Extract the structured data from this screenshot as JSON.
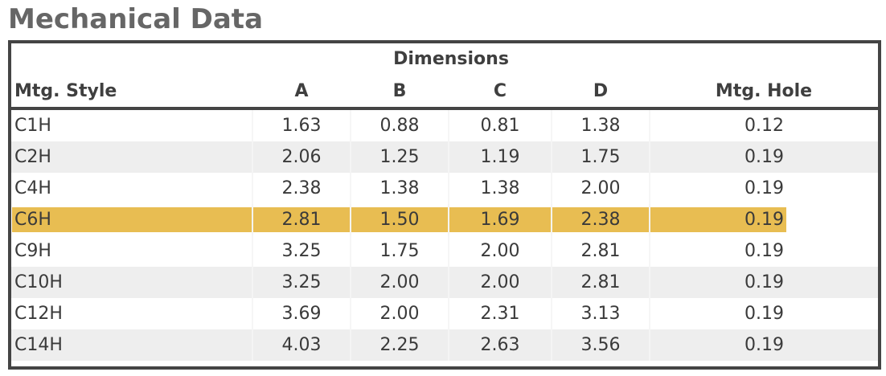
{
  "title": "Mechanical Data",
  "group_header": "Dimensions",
  "columns": [
    "Mtg. Style",
    "A",
    "B",
    "C",
    "D",
    "Mtg. Hole"
  ],
  "rows": [
    {
      "style": "C1H",
      "a": "1.63",
      "b": "0.88",
      "c": "0.81",
      "d": "1.38",
      "hole": "0.12"
    },
    {
      "style": "C2H",
      "a": "2.06",
      "b": "1.25",
      "c": "1.19",
      "d": "1.75",
      "hole": "0.19"
    },
    {
      "style": "C4H",
      "a": "2.38",
      "b": "1.38",
      "c": "1.38",
      "d": "2.00",
      "hole": "0.19"
    },
    {
      "style": "C6H",
      "a": "2.81",
      "b": "1.50",
      "c": "1.69",
      "d": "2.38",
      "hole": "0.19"
    },
    {
      "style": "C9H",
      "a": "3.25",
      "b": "1.75",
      "c": "2.00",
      "d": "2.81",
      "hole": "0.19"
    },
    {
      "style": "C10H",
      "a": "3.25",
      "b": "2.00",
      "c": "2.00",
      "d": "2.81",
      "hole": "0.19"
    },
    {
      "style": "C12H",
      "a": "3.69",
      "b": "2.00",
      "c": "2.31",
      "d": "3.13",
      "hole": "0.19"
    },
    {
      "style": "C14H",
      "a": "4.03",
      "b": "2.25",
      "c": "2.63",
      "d": "3.56",
      "hole": "0.19"
    }
  ],
  "highlighted_row": 3,
  "colors": {
    "highlight": "#e8bd52",
    "border": "#444444",
    "stripe": "#eeeeee",
    "title": "#666666"
  }
}
